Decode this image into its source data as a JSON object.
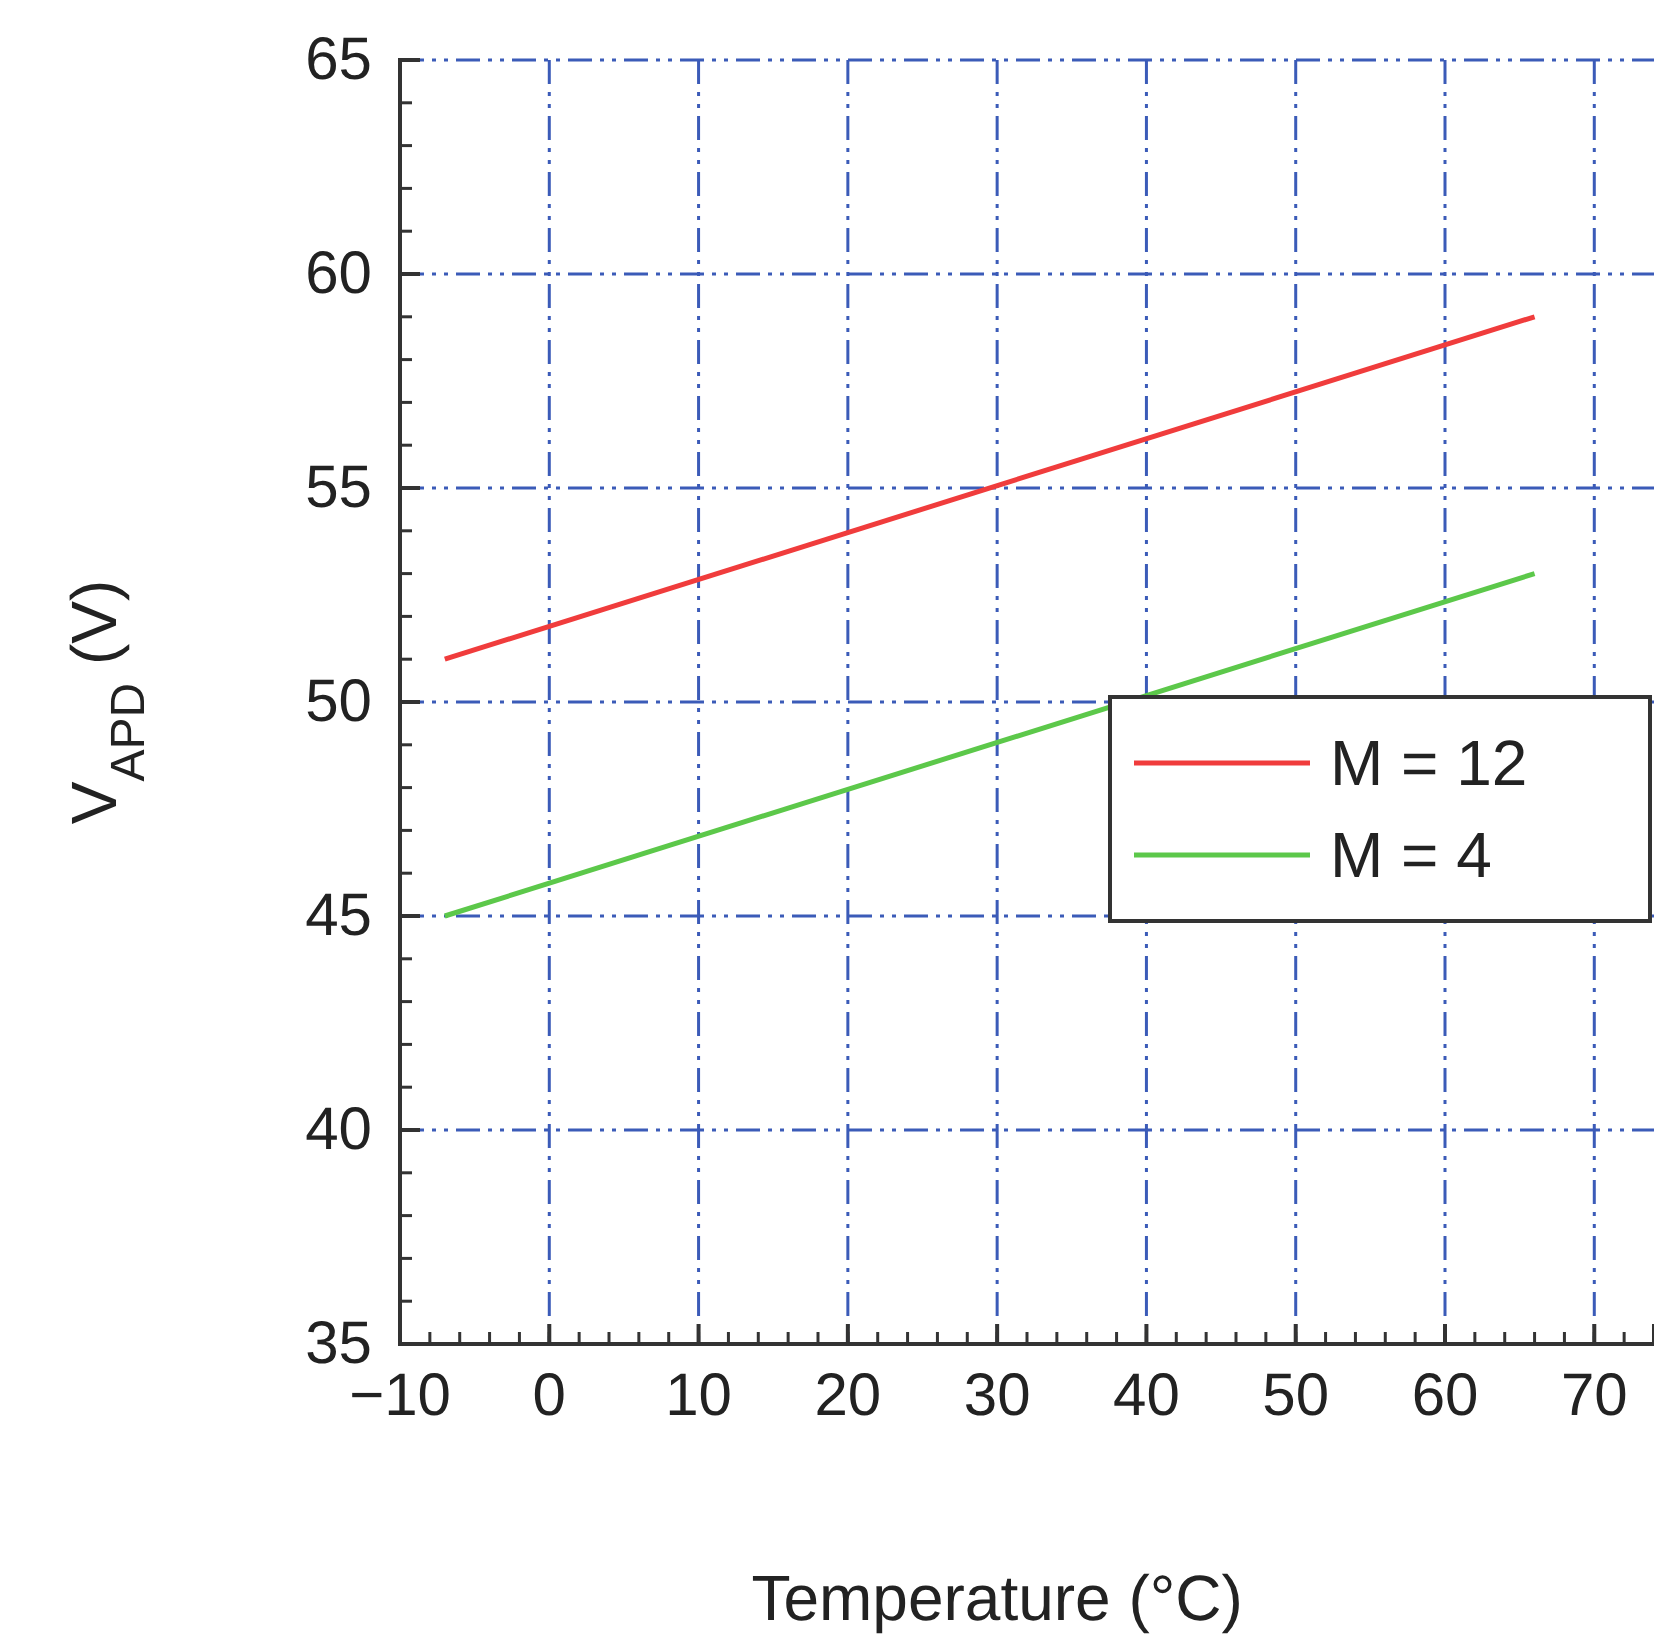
{
  "chart_data": {
    "type": "line",
    "xlabel": "Temperature (°C)",
    "ylabel": "V$_{APD}$ (V)",
    "xlim": [
      -10,
      74
    ],
    "xticks": [
      -10,
      0,
      10,
      20,
      30,
      40,
      50,
      60,
      70
    ],
    "ylim": [
      35,
      65
    ],
    "yticks": [
      35,
      40,
      45,
      50,
      55,
      60,
      65
    ],
    "x": [
      -7,
      66
    ],
    "grid": true,
    "legend": "right",
    "line_style": "solid",
    "marker": "none",
    "series": [
      {
        "name": "M = 12",
        "color": "#f03c3c",
        "values": [
          51,
          59
        ]
      },
      {
        "name": "M = 4",
        "color": "#5cc84a",
        "values": [
          45,
          53
        ]
      }
    ]
  }
}
